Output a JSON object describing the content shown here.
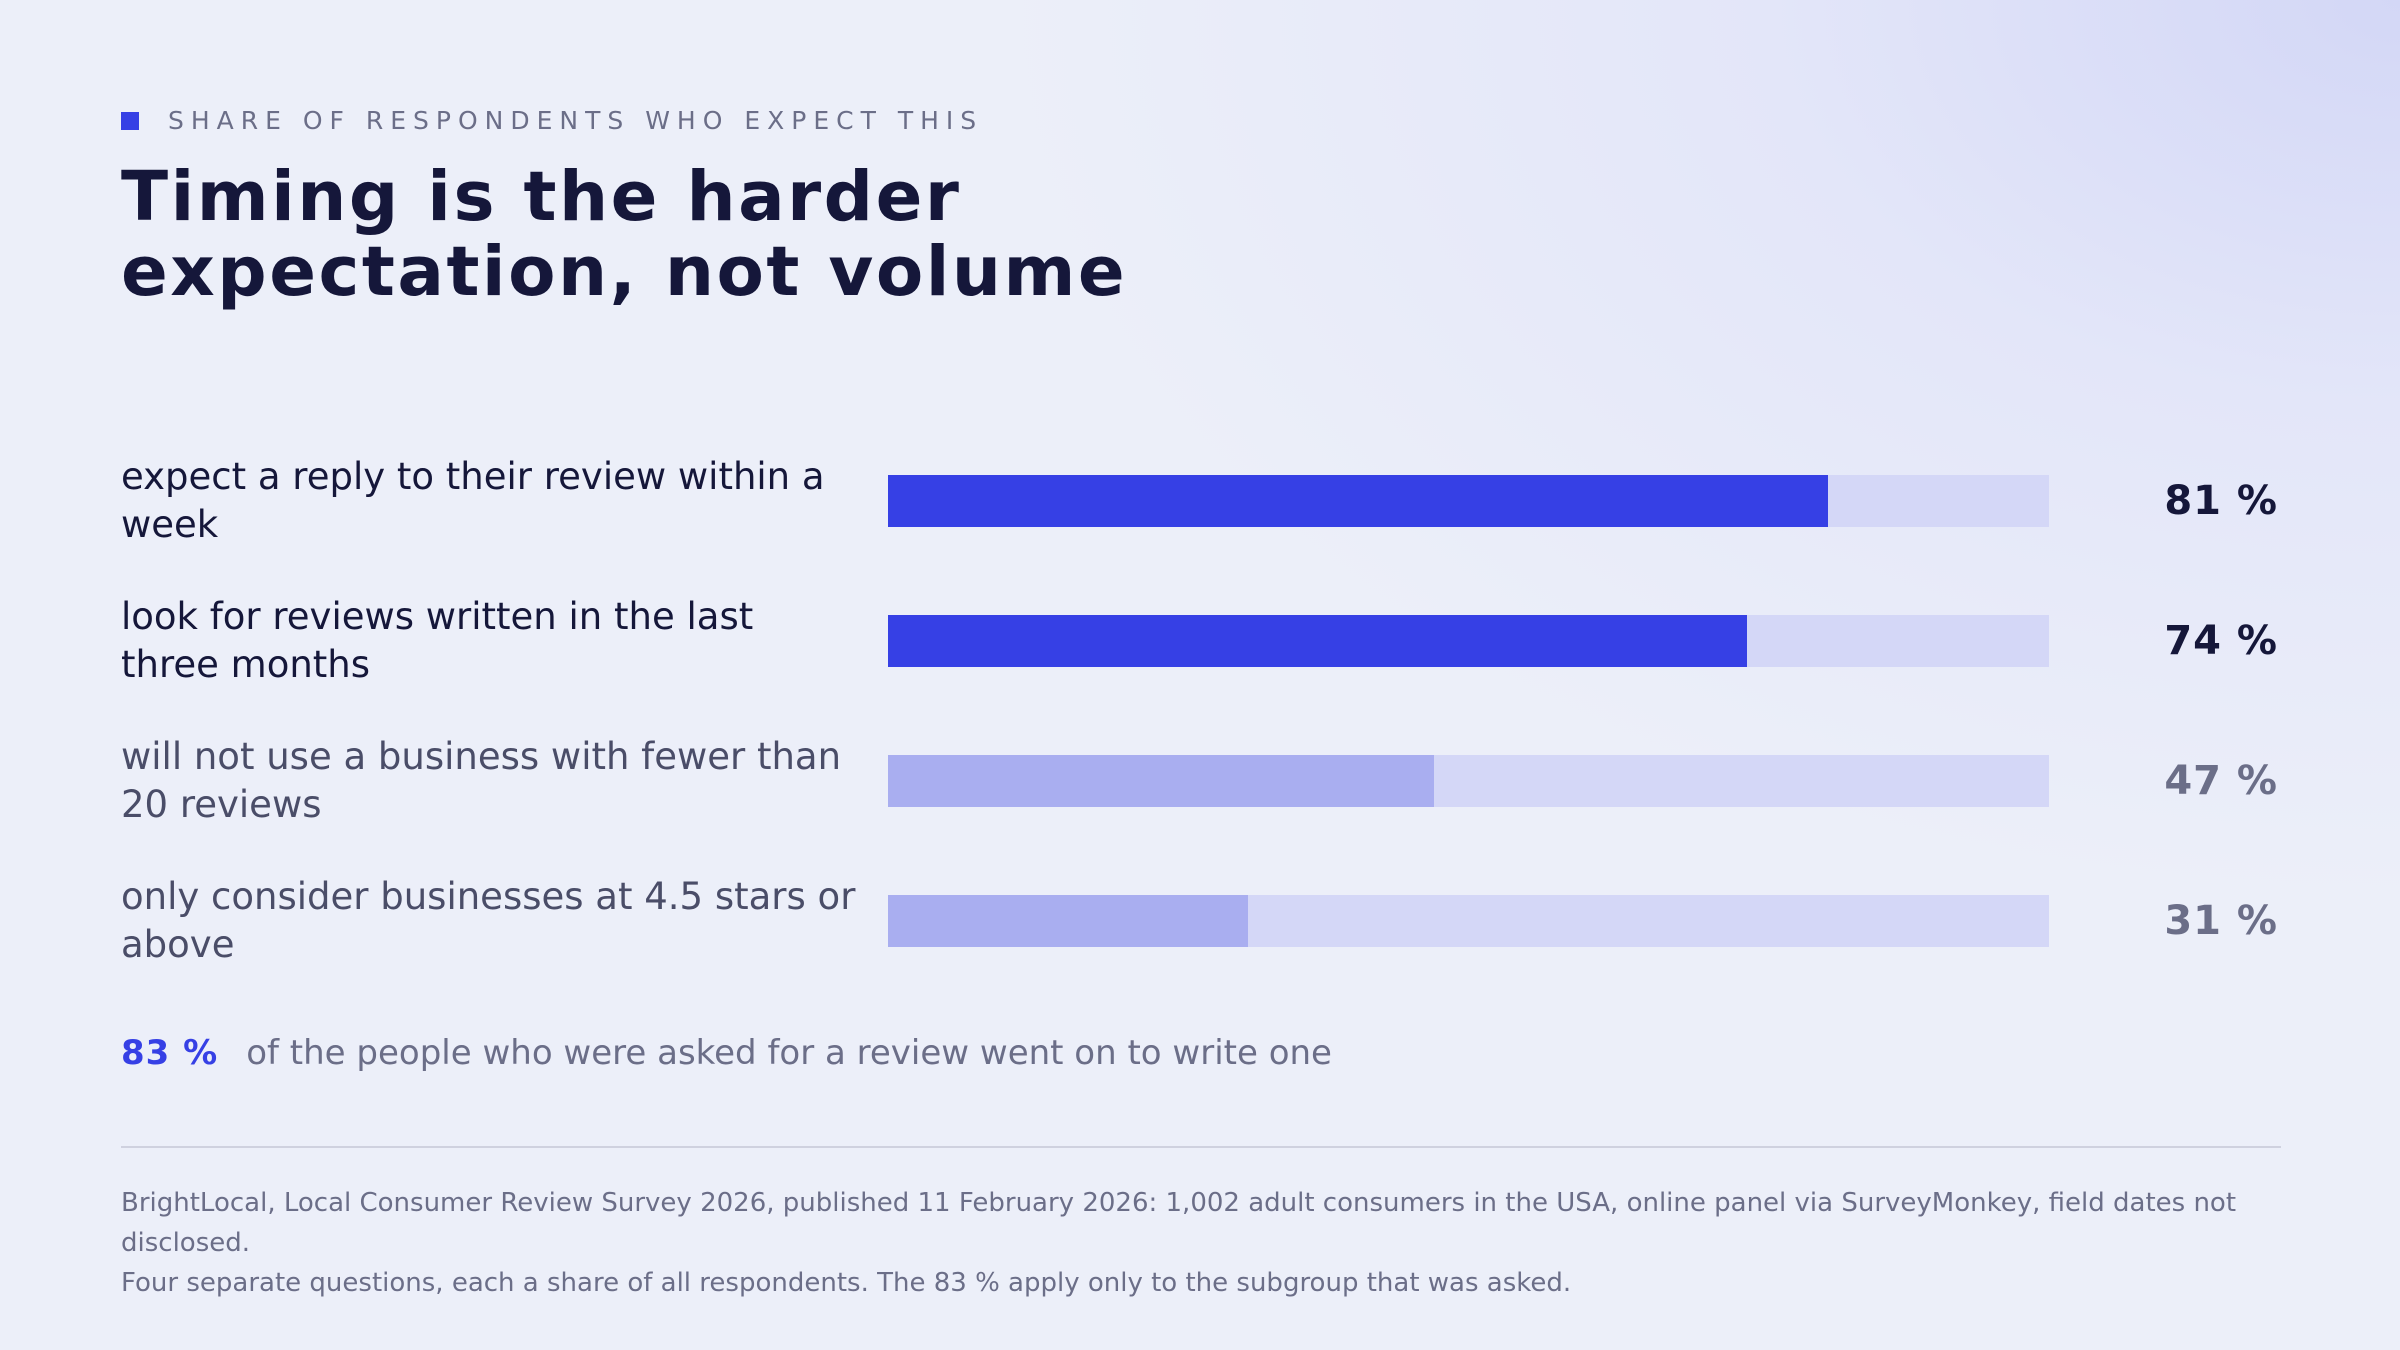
{
  "kicker": "SHARE OF RESPONDENTS WHO EXPECT THIS",
  "title": "Timing is the harder expectation, not volume",
  "colors": {
    "accent": "#3640e5",
    "muted_bar": "#a9aef0",
    "track": "#d4d7f7",
    "text_dark": "#15173a",
    "text_muted": "#6b6e88"
  },
  "chart_data": {
    "type": "bar",
    "orientation": "horizontal",
    "xlim": [
      0,
      100
    ],
    "unit": "%",
    "categories": [
      "expect a reply to their review within a week",
      "look for reviews written in the last three months",
      "will not use a business with fewer than 20 reviews",
      "only consider businesses at 4.5 stars or above"
    ],
    "values": [
      81,
      74,
      47,
      31
    ],
    "value_labels": [
      "81 %",
      "74 %",
      "47 %",
      "31 %"
    ],
    "emphasis": [
      "strong",
      "strong",
      "muted",
      "muted"
    ]
  },
  "callout": {
    "value": "83 %",
    "text": "of the people who were asked for a review went on to write one"
  },
  "source": {
    "line1": "BrightLocal, Local Consumer Review Survey 2026, published 11 February 2026: 1,002 adult consumers in the USA, online panel via SurveyMonkey, field dates not disclosed.",
    "line2": "Four separate questions, each a share of all respondents. The 83 % apply only to the subgroup that was asked."
  }
}
